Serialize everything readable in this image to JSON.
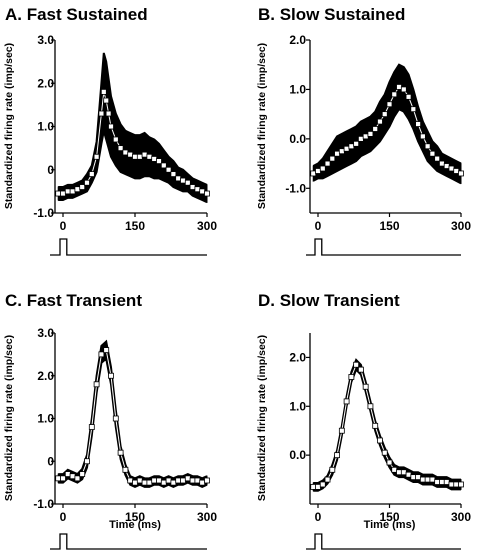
{
  "chart_data": [
    {
      "type": "line",
      "title": "A.  Fast Sustained",
      "ylabel": "Standardized firing rate (imp/sec)",
      "xlabel": "",
      "xlim": [
        0,
        300
      ],
      "ylim": [
        -1.0,
        3.0
      ],
      "xticks": [
        "0",
        "150",
        "300"
      ],
      "yticks": [
        "-1.0",
        "0",
        "1.0",
        "2.0",
        "3.0"
      ],
      "grid": false,
      "stimulus": {
        "onset": 0,
        "offset": 10
      },
      "x": [
        -10,
        0,
        10,
        20,
        30,
        40,
        50,
        60,
        70,
        80,
        85,
        90,
        95,
        100,
        110,
        120,
        130,
        140,
        150,
        160,
        170,
        180,
        190,
        200,
        210,
        220,
        230,
        240,
        250,
        260,
        270,
        280,
        290,
        300
      ],
      "mean": [
        -0.55,
        -0.55,
        -0.5,
        -0.5,
        -0.45,
        -0.4,
        -0.3,
        -0.1,
        0.3,
        1.3,
        1.8,
        1.6,
        1.3,
        1.0,
        0.7,
        0.5,
        0.4,
        0.35,
        0.3,
        0.3,
        0.35,
        0.3,
        0.25,
        0.2,
        0.1,
        0.0,
        -0.1,
        -0.2,
        -0.25,
        -0.3,
        -0.4,
        -0.45,
        -0.5,
        -0.55
      ],
      "spread": [
        0.15,
        0.15,
        0.15,
        0.15,
        0.15,
        0.15,
        0.2,
        0.2,
        0.35,
        0.7,
        0.9,
        0.9,
        0.8,
        0.7,
        0.6,
        0.55,
        0.5,
        0.5,
        0.5,
        0.5,
        0.5,
        0.45,
        0.45,
        0.4,
        0.35,
        0.3,
        0.3,
        0.25,
        0.25,
        0.2,
        0.2,
        0.2,
        0.2,
        0.2
      ]
    },
    {
      "type": "line",
      "title": "B.  Slow Sustained",
      "ylabel": "Standardized firing rate (imp/sec)",
      "xlabel": "",
      "xlim": [
        0,
        300
      ],
      "ylim": [
        -1.5,
        2.0
      ],
      "xticks": [
        "0",
        "150",
        "300"
      ],
      "yticks": [
        "-1.0",
        "0.0",
        "1.0",
        "2.0"
      ],
      "grid": false,
      "stimulus": {
        "onset": 0,
        "offset": 10
      },
      "x": [
        -10,
        0,
        10,
        20,
        30,
        40,
        50,
        60,
        70,
        80,
        90,
        100,
        110,
        120,
        130,
        140,
        150,
        160,
        170,
        180,
        190,
        200,
        210,
        220,
        230,
        240,
        250,
        260,
        270,
        280,
        290,
        300
      ],
      "mean": [
        -0.7,
        -0.65,
        -0.6,
        -0.5,
        -0.4,
        -0.3,
        -0.25,
        -0.2,
        -0.15,
        -0.1,
        0.0,
        0.05,
        0.1,
        0.2,
        0.35,
        0.5,
        0.7,
        0.9,
        1.05,
        1.0,
        0.85,
        0.6,
        0.3,
        0.05,
        -0.15,
        -0.3,
        -0.4,
        -0.5,
        -0.55,
        -0.6,
        -0.65,
        -0.7
      ],
      "spread": [
        0.15,
        0.15,
        0.2,
        0.25,
        0.3,
        0.35,
        0.35,
        0.35,
        0.35,
        0.35,
        0.35,
        0.35,
        0.35,
        0.35,
        0.4,
        0.4,
        0.45,
        0.45,
        0.45,
        0.45,
        0.45,
        0.4,
        0.35,
        0.3,
        0.3,
        0.25,
        0.25,
        0.2,
        0.2,
        0.2,
        0.2,
        0.2
      ]
    },
    {
      "type": "line",
      "title": "C.  Fast Transient",
      "ylabel": "Standardized firing rate (imp/sec)",
      "xlabel": "Time (ms)",
      "xlim": [
        0,
        300
      ],
      "ylim": [
        -1.0,
        3.0
      ],
      "xticks": [
        "0",
        "150",
        "300"
      ],
      "yticks": [
        "-1.0",
        "0",
        "1.0",
        "2.0",
        "3.0"
      ],
      "grid": false,
      "stimulus": {
        "onset": 0,
        "offset": 10
      },
      "x": [
        -10,
        0,
        10,
        20,
        30,
        40,
        50,
        60,
        70,
        80,
        90,
        100,
        110,
        120,
        130,
        140,
        150,
        160,
        170,
        180,
        190,
        200,
        210,
        220,
        230,
        240,
        250,
        260,
        270,
        280,
        290,
        300
      ],
      "mean": [
        -0.4,
        -0.4,
        -0.3,
        -0.35,
        -0.4,
        -0.3,
        0.0,
        0.8,
        1.8,
        2.5,
        2.6,
        2.0,
        1.0,
        0.2,
        -0.2,
        -0.45,
        -0.5,
        -0.45,
        -0.5,
        -0.5,
        -0.45,
        -0.45,
        -0.5,
        -0.45,
        -0.5,
        -0.45,
        -0.45,
        -0.4,
        -0.45,
        -0.45,
        -0.5,
        -0.45
      ],
      "spread": [
        0.1,
        0.1,
        0.1,
        0.1,
        0.1,
        0.12,
        0.15,
        0.2,
        0.2,
        0.2,
        0.2,
        0.2,
        0.2,
        0.15,
        0.12,
        0.1,
        0.1,
        0.1,
        0.1,
        0.1,
        0.1,
        0.1,
        0.1,
        0.1,
        0.1,
        0.1,
        0.1,
        0.1,
        0.1,
        0.1,
        0.1,
        0.1
      ]
    },
    {
      "type": "line",
      "title": "D.  Slow Transient",
      "ylabel": "Standardized firing rate (imp/sec)",
      "xlabel": "Time (ms)",
      "xlim": [
        0,
        300
      ],
      "ylim": [
        -1.0,
        2.5
      ],
      "xticks": [
        "0",
        "150",
        "300"
      ],
      "yticks": [
        "0.0",
        "1.0",
        "2.0"
      ],
      "grid": false,
      "stimulus": {
        "onset": 0,
        "offset": 10
      },
      "x": [
        -10,
        0,
        10,
        20,
        30,
        40,
        50,
        60,
        70,
        80,
        90,
        100,
        110,
        120,
        130,
        140,
        150,
        160,
        170,
        180,
        190,
        200,
        210,
        220,
        230,
        240,
        250,
        260,
        270,
        280,
        290,
        300
      ],
      "mean": [
        -0.65,
        -0.65,
        -0.6,
        -0.5,
        -0.3,
        0.0,
        0.5,
        1.1,
        1.6,
        1.85,
        1.75,
        1.4,
        1.0,
        0.6,
        0.3,
        0.05,
        -0.15,
        -0.3,
        -0.35,
        -0.35,
        -0.4,
        -0.45,
        -0.45,
        -0.5,
        -0.5,
        -0.5,
        -0.55,
        -0.55,
        -0.55,
        -0.6,
        -0.6,
        -0.6
      ],
      "spread": [
        0.08,
        0.08,
        0.08,
        0.08,
        0.1,
        0.1,
        0.1,
        0.1,
        0.1,
        0.1,
        0.1,
        0.1,
        0.1,
        0.1,
        0.1,
        0.1,
        0.1,
        0.1,
        0.1,
        0.1,
        0.1,
        0.1,
        0.1,
        0.1,
        0.1,
        0.1,
        0.1,
        0.1,
        0.1,
        0.1,
        0.1,
        0.1
      ]
    }
  ]
}
